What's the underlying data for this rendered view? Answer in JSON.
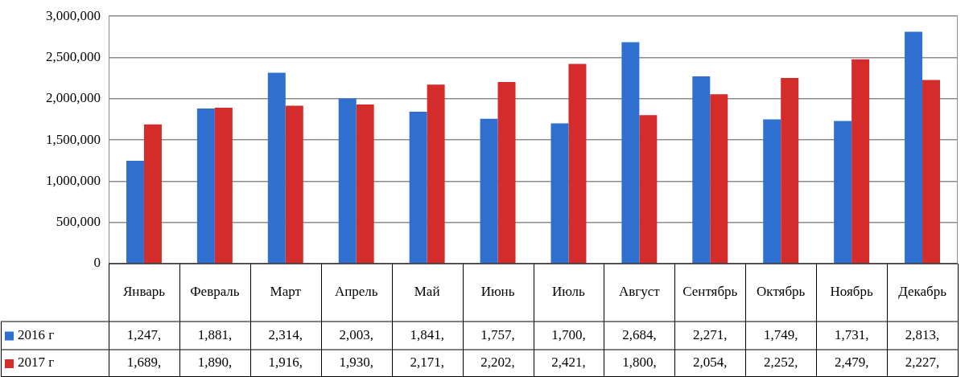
{
  "chart_data": {
    "type": "bar",
    "categories": [
      "Январь",
      "Февраль",
      "Март",
      "Апрель",
      "Май",
      "Июнь",
      "Июль",
      "Август",
      "Сентябрь",
      "Октябрь",
      "Ноябрь",
      "Декабрь"
    ],
    "series": [
      {
        "name": "2016 г",
        "color": "#2f6fcf",
        "values": [
          1247000,
          1881000,
          2314000,
          2003000,
          1841000,
          1757000,
          1700000,
          2684000,
          2271000,
          1749000,
          1731000,
          2813000
        ]
      },
      {
        "name": "2017 г",
        "color": "#d42b2b",
        "values": [
          1689000,
          1890000,
          1916000,
          1930000,
          2171000,
          2202000,
          2421000,
          1800000,
          2054000,
          2252000,
          2479000,
          2227000
        ]
      }
    ],
    "annotations": [
      "1,247,",
      "1,881,",
      "2,314,",
      "2,003,",
      "1,841,",
      "1,757,",
      "1,700,",
      "2,684,",
      "2,271,",
      "1,749,",
      "1,731,",
      "2,813,",
      "1,689,",
      "1,890,",
      "1,916,",
      "1,930,",
      "2,171,",
      "2,202,",
      "2,421,",
      "1,800,",
      "2,054,",
      "2,252,",
      "2,479,",
      "2,227,"
    ],
    "ylim": [
      0,
      3000000
    ],
    "yticks": [
      {
        "value": 0,
        "label": "0"
      },
      {
        "value": 500000,
        "label": "500,000"
      },
      {
        "value": 1000000,
        "label": "1,000,000"
      },
      {
        "value": 1500000,
        "label": "1,500,000"
      },
      {
        "value": 2000000,
        "label": "2,000,000"
      },
      {
        "value": 2500000,
        "label": "2,500,000"
      },
      {
        "value": 3000000,
        "label": "3,000,000"
      }
    ],
    "grid": "y",
    "legend": "bottom"
  }
}
